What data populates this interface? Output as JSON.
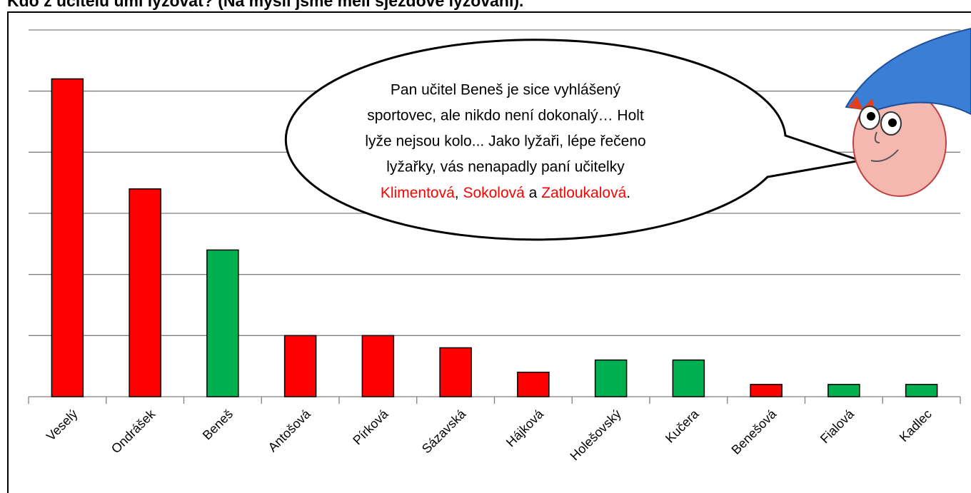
{
  "chart_data": {
    "type": "bar",
    "title": "Kdo z učitelů umí lyžovat? (Na mysli jsme měli sjezdové lyžování).",
    "categories": [
      "Veselý",
      "Ondrášek",
      "Beneš",
      "Antošová",
      "Pírková",
      "Sázavská",
      "Hájková",
      "Holešovský",
      "Kučera",
      "Benešová",
      "Fialová",
      "Kadlec"
    ],
    "values": [
      26,
      17,
      12,
      5,
      5,
      4,
      2,
      3,
      3,
      1,
      1,
      1
    ],
    "colors": [
      "#ff0000",
      "#ff0000",
      "#00b050",
      "#ff0000",
      "#ff0000",
      "#ff0000",
      "#ff0000",
      "#00b050",
      "#00b050",
      "#ff0000",
      "#00b050",
      "#00b050"
    ],
    "ylim": [
      0,
      30
    ],
    "yticks": [
      0,
      5,
      10,
      15,
      20,
      25,
      30
    ],
    "ytick_labels": false,
    "grid": true,
    "annotation": {
      "lines": [
        "Pan učitel Beneš je sice vyhlášený",
        "sportovec, ale nikdo není dokonalý… Holt",
        "lyže nejsou kolo... Jako lyžaři, lépe řečeno",
        "lyžařky, vás nenapadly paní učitelky"
      ],
      "last_line": [
        {
          "text": "Klimentová",
          "color": "#ff0000"
        },
        {
          "text": ", ",
          "color": "#000000"
        },
        {
          "text": "Sokolová",
          "color": "#ff0000"
        },
        {
          "text": " a ",
          "color": "#000000"
        },
        {
          "text": "Zatloukalová",
          "color": "#ff0000"
        },
        {
          "text": ".",
          "color": "#000000"
        }
      ]
    }
  }
}
